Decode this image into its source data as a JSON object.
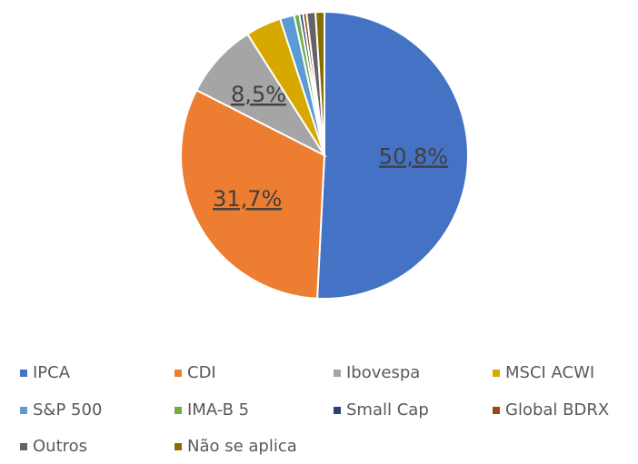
{
  "chart_data": {
    "type": "pie",
    "categories": [
      "IPCA",
      "CDI",
      "Ibovespa",
      "MSCI ACWI",
      "S&P 500",
      "IMA-B 5",
      "Small Cap",
      "Global BDRX",
      "Outros",
      "Não se aplica"
    ],
    "values": [
      50.8,
      31.7,
      8.5,
      4.0,
      1.6,
      0.6,
      0.4,
      0.4,
      1.0,
      1.0
    ],
    "value_labels": [
      "50,8%",
      "31,7%",
      "8,5%",
      null,
      null,
      null,
      null,
      null,
      null,
      null
    ],
    "colors": [
      "#4472c4",
      "#ed7d31",
      "#a5a5a5",
      "#d6a800",
      "#5b9bd5",
      "#70ad47",
      "#264478",
      "#9e480e",
      "#636363",
      "#8a6d00"
    ],
    "legend": "bottom"
  }
}
